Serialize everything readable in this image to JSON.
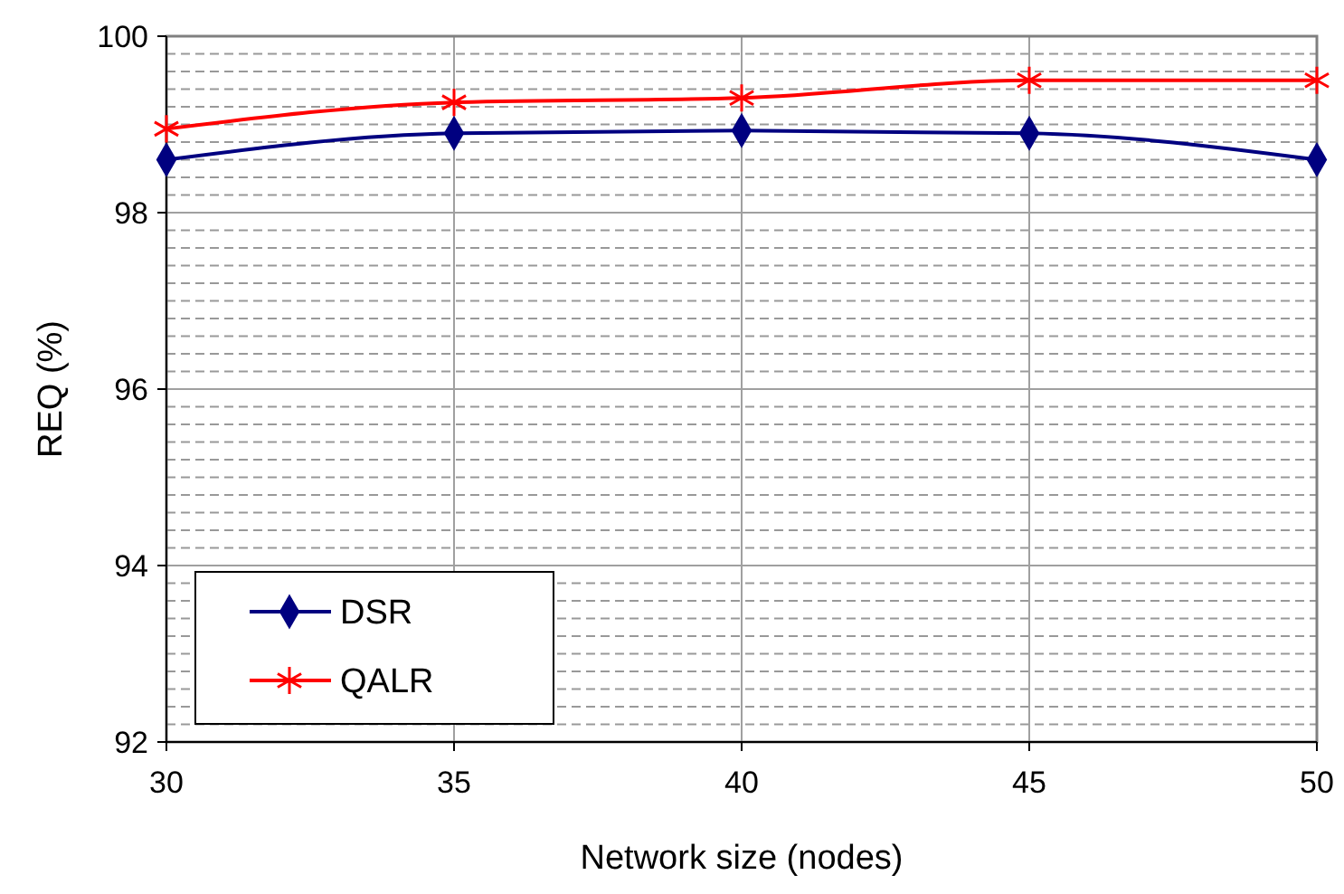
{
  "chart_data": {
    "type": "line",
    "xlabel": "Network size (nodes)",
    "ylabel": "REQ (%)",
    "x": [
      30,
      35,
      40,
      45,
      50
    ],
    "series": [
      {
        "name": "DSR",
        "color": "#000080",
        "marker": "diamond",
        "values": [
          98.6,
          98.9,
          98.93,
          98.9,
          98.6
        ]
      },
      {
        "name": "QALR",
        "color": "#ff0000",
        "marker": "cross",
        "values": [
          98.95,
          99.25,
          99.3,
          99.5,
          99.5
        ]
      }
    ],
    "xlim": [
      30,
      50
    ],
    "xticks": [
      30,
      35,
      40,
      45,
      50
    ],
    "ylim": [
      92,
      100
    ],
    "yticks": [
      92,
      {
        "value": 92.2,
        "label": null
      },
      {
        "value": 92.4,
        "label": null
      },
      {
        "value": 92.6,
        "label": null
      },
      {
        "value": 92.8,
        "label": null
      },
      {
        "value": 93,
        "label": null
      },
      {
        "value": 93.2,
        "label": null
      },
      {
        "value": 93.4,
        "label": null
      },
      {
        "value": 93.6,
        "label": null
      },
      {
        "value": 93.8,
        "label": null
      },
      94,
      {
        "value": 94.2,
        "label": null
      },
      {
        "value": 94.4,
        "label": null
      },
      {
        "value": 94.6,
        "label": null
      },
      {
        "value": 94.8,
        "label": null
      },
      {
        "value": 95,
        "label": null
      },
      {
        "value": 95.2,
        "label": null
      },
      {
        "value": 95.4,
        "label": null
      },
      {
        "value": 95.6,
        "label": null
      },
      {
        "value": 95.8,
        "label": null
      },
      96,
      {
        "value": 96.2,
        "label": null
      },
      {
        "value": 96.4,
        "label": null
      },
      {
        "value": 96.6,
        "label": null
      },
      {
        "value": 96.8,
        "label": null
      },
      {
        "value": 97,
        "label": null
      },
      {
        "value": 97.2,
        "label": null
      },
      {
        "value": 97.4,
        "label": null
      },
      {
        "value": 97.6,
        "label": null
      },
      {
        "value": 97.8,
        "label": null
      },
      98,
      {
        "value": 98.2,
        "label": null
      },
      {
        "value": 98.4,
        "label": null
      },
      {
        "value": 98.6,
        "label": null
      },
      {
        "value": 98.8,
        "label": null
      },
      {
        "value": 99,
        "label": null
      },
      {
        "value": 99.2,
        "label": null
      },
      {
        "value": 99.4,
        "label": null
      },
      {
        "value": 99.6,
        "label": null
      },
      {
        "value": 99.8,
        "label": null
      },
      100
    ],
    "grid": true,
    "legend": "bottom left",
    "line_style": "solid"
  }
}
